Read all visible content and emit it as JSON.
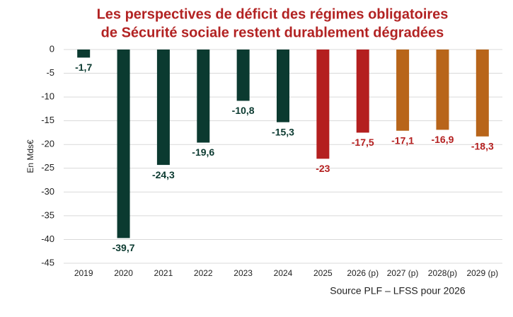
{
  "chart_data": {
    "type": "bar",
    "title": [
      "Les perspectives de déficit des régimes obligatoires",
      "de Sécurité sociale restent durablement dégradées"
    ],
    "y_label": "En Mds€",
    "source": "Source PLF – LFSS pour 2026",
    "categories": [
      "2019",
      "2020",
      "2021",
      "2022",
      "2023",
      "2024",
      "2025",
      "2026 (p)",
      "2027 (p)",
      "2028(p)",
      "2029 (p)"
    ],
    "values": [
      -1.7,
      -39.7,
      -24.3,
      -19.6,
      -10.8,
      -15.3,
      -23,
      -17.5,
      -17.1,
      -16.9,
      -18.3
    ],
    "value_labels": [
      "-1,7",
      "-39,7",
      "-24,3",
      "-19,6",
      "-10,8",
      "-15,3",
      "-23",
      "-17,5",
      "-17,1",
      "-16,9",
      "-18,3"
    ],
    "colors": [
      "#0b3a30",
      "#0b3a30",
      "#0b3a30",
      "#0b3a30",
      "#0b3a30",
      "#0b3a30",
      "#b41f1f",
      "#b41f1f",
      "#b8651a",
      "#b8651a",
      "#b8651a"
    ],
    "label_colors": [
      "#0b3a30",
      "#0b3a30",
      "#0b3a30",
      "#0b3a30",
      "#0b3a30",
      "#0b3a30",
      "#b41f1f",
      "#b41f1f",
      "#b41f1f",
      "#b41f1f",
      "#b41f1f"
    ],
    "title_color": "#b22222",
    "ylim": [
      -45,
      0
    ],
    "yticks": [
      0,
      -5,
      -10,
      -15,
      -20,
      -25,
      -30,
      -35,
      -40,
      -45
    ],
    "grid": true
  }
}
